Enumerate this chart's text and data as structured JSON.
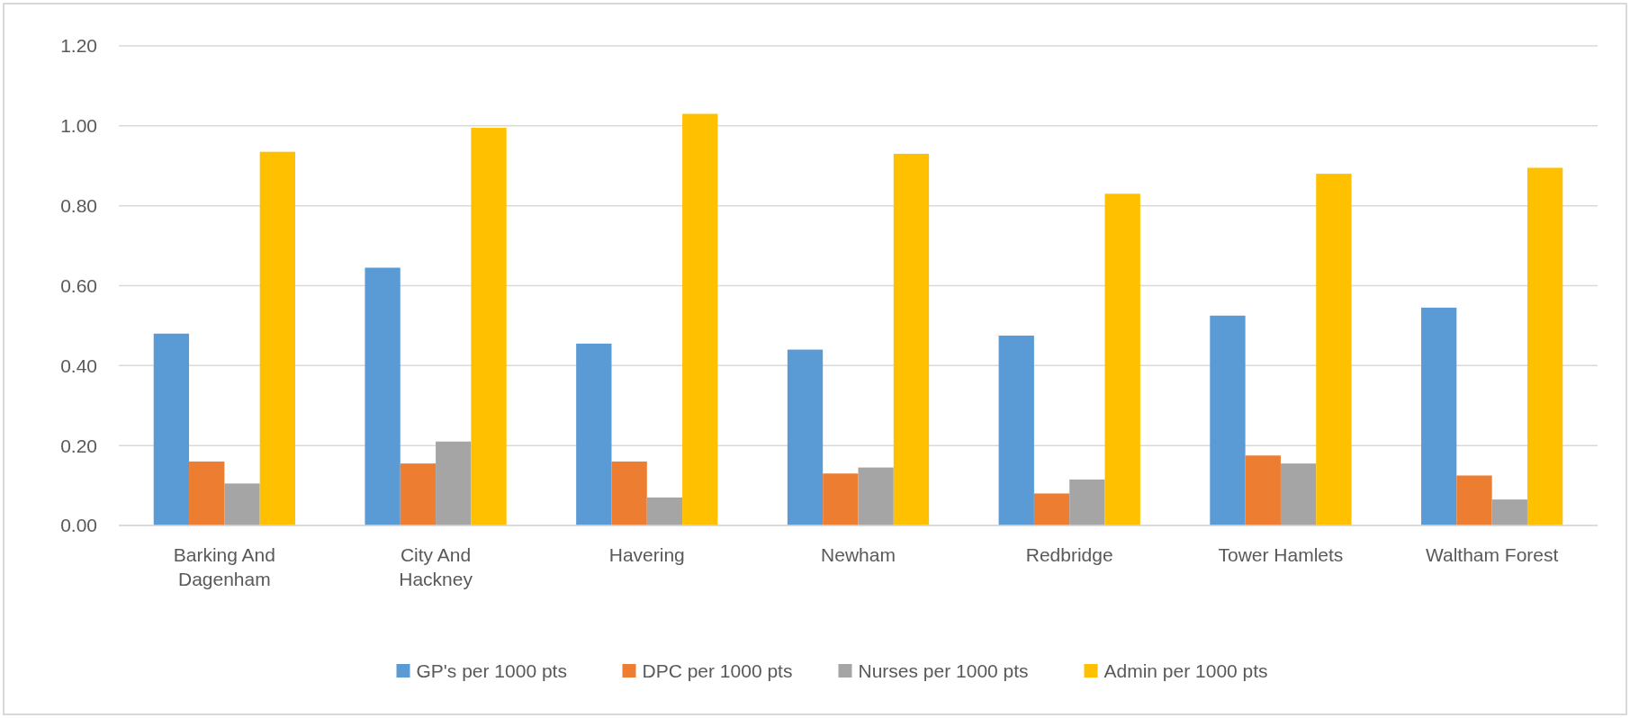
{
  "chart_data": {
    "type": "bar",
    "categories": [
      "Barking And Dagenham",
      "City And Hackney",
      "Havering",
      "Newham",
      "Redbridge",
      "Tower Hamlets",
      "Waltham Forest"
    ],
    "series": [
      {
        "name": "GP's per 1000 pts",
        "color": "#5b9bd5",
        "values": [
          0.48,
          0.645,
          0.455,
          0.44,
          0.475,
          0.525,
          0.545
        ]
      },
      {
        "name": "DPC per 1000 pts",
        "color": "#ed7d31",
        "values": [
          0.16,
          0.155,
          0.16,
          0.13,
          0.08,
          0.175,
          0.125
        ]
      },
      {
        "name": "Nurses per 1000 pts",
        "color": "#a5a5a5",
        "values": [
          0.105,
          0.21,
          0.07,
          0.145,
          0.115,
          0.155,
          0.065
        ]
      },
      {
        "name": "Admin per 1000 pts",
        "color": "#ffc000",
        "values": [
          0.935,
          0.995,
          1.03,
          0.93,
          0.83,
          0.88,
          0.895
        ]
      }
    ],
    "ylim": [
      0,
      1.2
    ],
    "yticks": [
      {
        "value": 0,
        "label": "0.00"
      },
      {
        "value": 0.2,
        "label": "0.20"
      },
      {
        "value": 0.4,
        "label": "0.40"
      },
      {
        "value": 0.6,
        "label": "0.60"
      },
      {
        "value": 0.8,
        "label": "0.80"
      },
      {
        "value": 1,
        "label": "1.00"
      },
      {
        "value": 1.2,
        "label": "1.20"
      }
    ],
    "grid": "y",
    "legend": "bottom"
  }
}
